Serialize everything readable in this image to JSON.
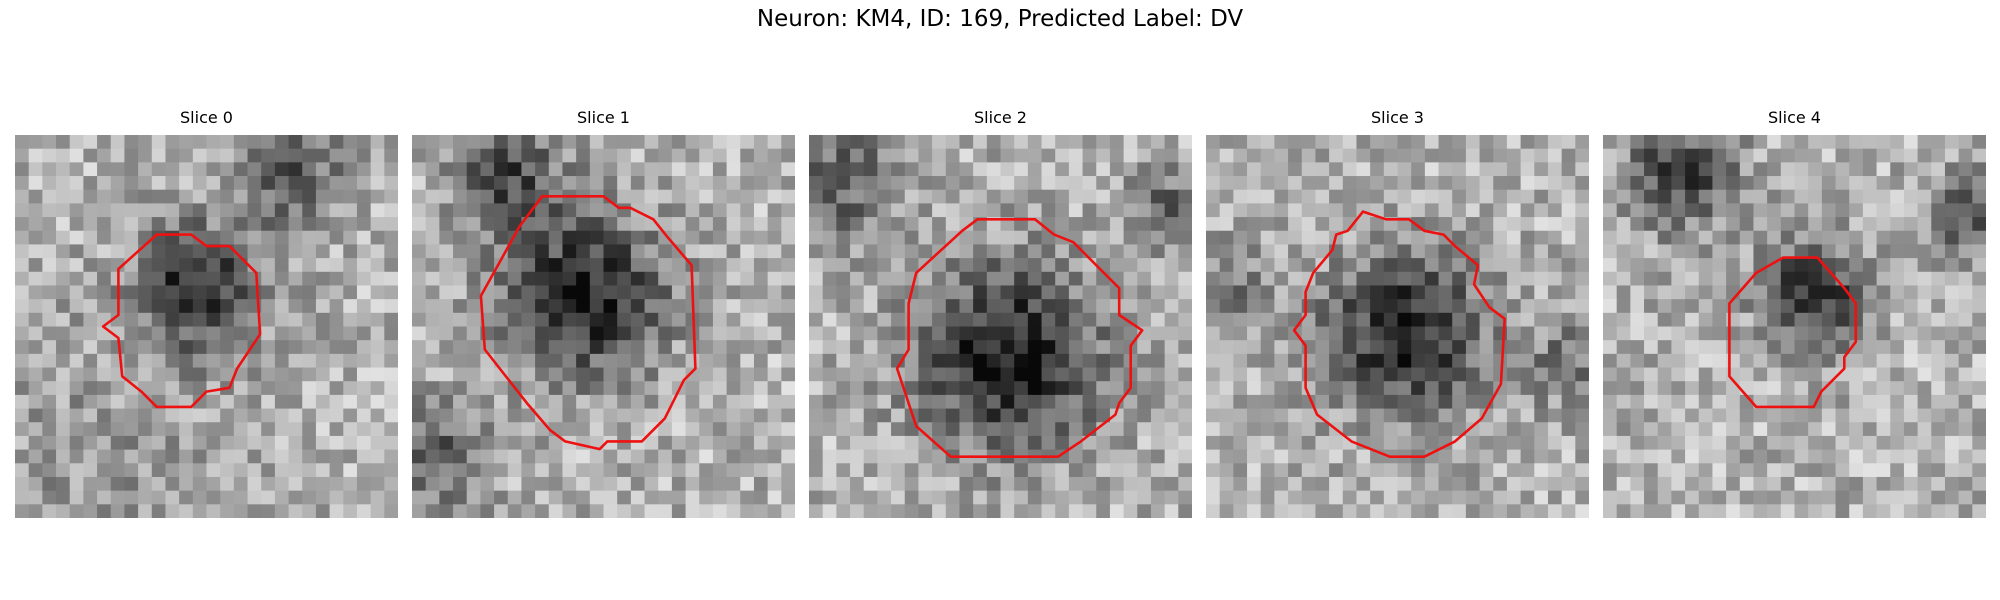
{
  "figure": {
    "title": "Neuron: KM4, ID: 169, Predicted Label: DV",
    "contour_color": "#ee1111",
    "grid_size": 28
  },
  "panels": [
    {
      "title": "Slice 0",
      "seed": 11,
      "dark": [
        [
          0.48,
          0.4,
          0.2,
          0.55
        ],
        [
          0.2,
          0.88,
          0.55,
          0.1,
          0.35
        ],
        [
          0.72,
          0.1,
          0.18,
          0.35
        ]
      ],
      "contour": [
        [
          0.27,
          0.35
        ],
        [
          0.37,
          0.26
        ],
        [
          0.46,
          0.26
        ],
        [
          0.5,
          0.29
        ],
        [
          0.56,
          0.29
        ],
        [
          0.63,
          0.36
        ],
        [
          0.64,
          0.52
        ],
        [
          0.58,
          0.61
        ],
        [
          0.56,
          0.66
        ],
        [
          0.5,
          0.67
        ],
        [
          0.46,
          0.71
        ],
        [
          0.37,
          0.71
        ],
        [
          0.33,
          0.67
        ],
        [
          0.28,
          0.63
        ],
        [
          0.27,
          0.53
        ],
        [
          0.23,
          0.5
        ],
        [
          0.27,
          0.47
        ]
      ]
    },
    {
      "title": "Slice 1",
      "seed": 23,
      "dark": [
        [
          0.45,
          0.42,
          0.26,
          0.6
        ],
        [
          0.25,
          0.1,
          0.18,
          0.4
        ],
        [
          0.05,
          0.85,
          0.18,
          0.35
        ]
      ],
      "contour": [
        [
          0.28,
          0.24
        ],
        [
          0.34,
          0.16
        ],
        [
          0.5,
          0.16
        ],
        [
          0.54,
          0.19
        ],
        [
          0.57,
          0.19
        ],
        [
          0.63,
          0.22
        ],
        [
          0.67,
          0.27
        ],
        [
          0.73,
          0.34
        ],
        [
          0.74,
          0.61
        ],
        [
          0.71,
          0.64
        ],
        [
          0.66,
          0.74
        ],
        [
          0.6,
          0.8
        ],
        [
          0.51,
          0.8
        ],
        [
          0.49,
          0.82
        ],
        [
          0.4,
          0.8
        ],
        [
          0.36,
          0.77
        ],
        [
          0.3,
          0.7
        ],
        [
          0.19,
          0.56
        ],
        [
          0.18,
          0.42
        ],
        [
          0.23,
          0.33
        ]
      ]
    },
    {
      "title": "Slice 2",
      "seed": 37,
      "dark": [
        [
          0.52,
          0.58,
          0.3,
          0.62
        ],
        [
          0.08,
          0.12,
          0.18,
          0.35
        ],
        [
          0.95,
          0.2,
          0.15,
          0.3
        ]
      ],
      "contour": [
        [
          0.28,
          0.36
        ],
        [
          0.4,
          0.25
        ],
        [
          0.44,
          0.22
        ],
        [
          0.59,
          0.22
        ],
        [
          0.64,
          0.26
        ],
        [
          0.69,
          0.28
        ],
        [
          0.78,
          0.37
        ],
        [
          0.81,
          0.4
        ],
        [
          0.81,
          0.47
        ],
        [
          0.87,
          0.51
        ],
        [
          0.84,
          0.55
        ],
        [
          0.84,
          0.66
        ],
        [
          0.81,
          0.7
        ],
        [
          0.8,
          0.73
        ],
        [
          0.71,
          0.8
        ],
        [
          0.65,
          0.84
        ],
        [
          0.49,
          0.84
        ],
        [
          0.37,
          0.84
        ],
        [
          0.28,
          0.76
        ],
        [
          0.25,
          0.67
        ],
        [
          0.23,
          0.61
        ],
        [
          0.26,
          0.56
        ],
        [
          0.26,
          0.44
        ]
      ]
    },
    {
      "title": "Slice 3",
      "seed": 53,
      "dark": [
        [
          0.52,
          0.52,
          0.26,
          0.58
        ],
        [
          0.05,
          0.4,
          0.15,
          0.25
        ],
        [
          0.95,
          0.6,
          0.15,
          0.25
        ]
      ],
      "contour": [
        [
          0.33,
          0.3
        ],
        [
          0.34,
          0.26
        ],
        [
          0.37,
          0.25
        ],
        [
          0.41,
          0.2
        ],
        [
          0.47,
          0.22
        ],
        [
          0.53,
          0.22
        ],
        [
          0.57,
          0.25
        ],
        [
          0.62,
          0.26
        ],
        [
          0.65,
          0.29
        ],
        [
          0.71,
          0.34
        ],
        [
          0.7,
          0.39
        ],
        [
          0.74,
          0.45
        ],
        [
          0.78,
          0.48
        ],
        [
          0.77,
          0.65
        ],
        [
          0.72,
          0.74
        ],
        [
          0.65,
          0.8
        ],
        [
          0.57,
          0.84
        ],
        [
          0.52,
          0.84
        ],
        [
          0.48,
          0.84
        ],
        [
          0.38,
          0.8
        ],
        [
          0.29,
          0.73
        ],
        [
          0.26,
          0.66
        ],
        [
          0.26,
          0.55
        ],
        [
          0.23,
          0.51
        ],
        [
          0.26,
          0.47
        ],
        [
          0.26,
          0.41
        ],
        [
          0.28,
          0.36
        ]
      ]
    },
    {
      "title": "Slice 4",
      "seed": 71,
      "dark": [
        [
          0.55,
          0.42,
          0.17,
          0.55
        ],
        [
          0.2,
          0.1,
          0.18,
          0.45
        ],
        [
          0.95,
          0.2,
          0.14,
          0.35
        ]
      ],
      "contour": [
        [
          0.33,
          0.44
        ],
        [
          0.4,
          0.36
        ],
        [
          0.47,
          0.32
        ],
        [
          0.56,
          0.32
        ],
        [
          0.63,
          0.4
        ],
        [
          0.66,
          0.44
        ],
        [
          0.66,
          0.54
        ],
        [
          0.63,
          0.58
        ],
        [
          0.63,
          0.61
        ],
        [
          0.57,
          0.67
        ],
        [
          0.55,
          0.71
        ],
        [
          0.4,
          0.71
        ],
        [
          0.33,
          0.63
        ]
      ]
    }
  ]
}
